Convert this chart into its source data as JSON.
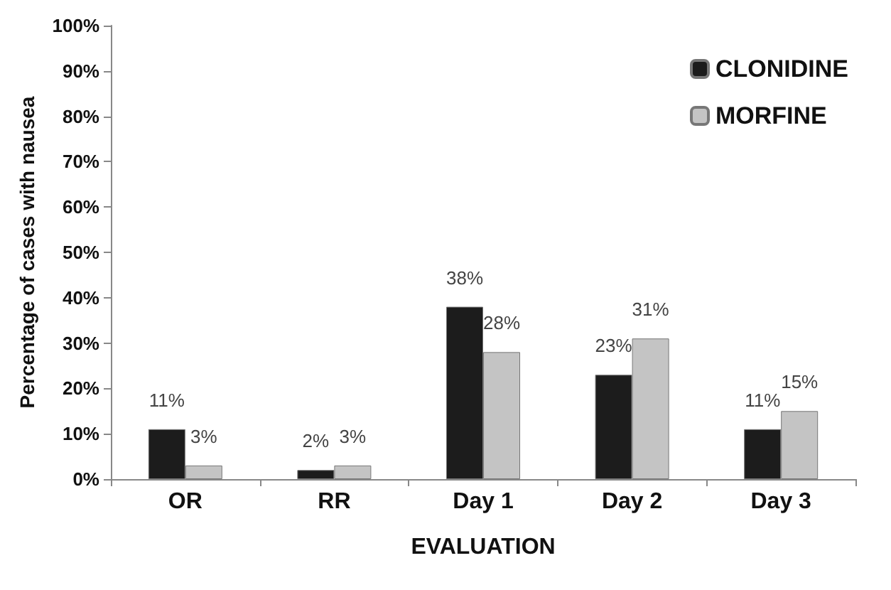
{
  "chart_data": {
    "type": "bar",
    "xlabel": "EVALUATION",
    "ylabel": "Percentage of cases with nausea",
    "categories": [
      "OR",
      "RR",
      "Day 1",
      "Day 2",
      "Day 3"
    ],
    "series": [
      {
        "name": "CLONIDINE",
        "color": "#1c1c1c",
        "values": [
          11,
          2,
          38,
          23,
          11
        ],
        "value_labels": [
          "11%",
          "2%",
          "38%",
          "23%",
          "11%"
        ]
      },
      {
        "name": "MORFINE",
        "color": "#c4c4c4",
        "values": [
          3,
          3,
          28,
          31,
          15
        ],
        "value_labels": [
          "3%",
          "3%",
          "28%",
          "31%",
          "15%"
        ]
      }
    ],
    "ylim": [
      0,
      100
    ],
    "yticks": [
      {
        "value": 0,
        "label": "0%"
      },
      {
        "value": 10,
        "label": "10%"
      },
      {
        "value": 20,
        "label": "20%"
      },
      {
        "value": 30,
        "label": "30%"
      },
      {
        "value": 40,
        "label": "40%"
      },
      {
        "value": 50,
        "label": "50%"
      },
      {
        "value": 60,
        "label": "60%"
      },
      {
        "value": 70,
        "label": "70%"
      },
      {
        "value": 80,
        "label": "80%"
      },
      {
        "value": 90,
        "label": "90%"
      },
      {
        "value": 100,
        "label": "100%"
      }
    ],
    "grid": false,
    "legend": "top right"
  }
}
